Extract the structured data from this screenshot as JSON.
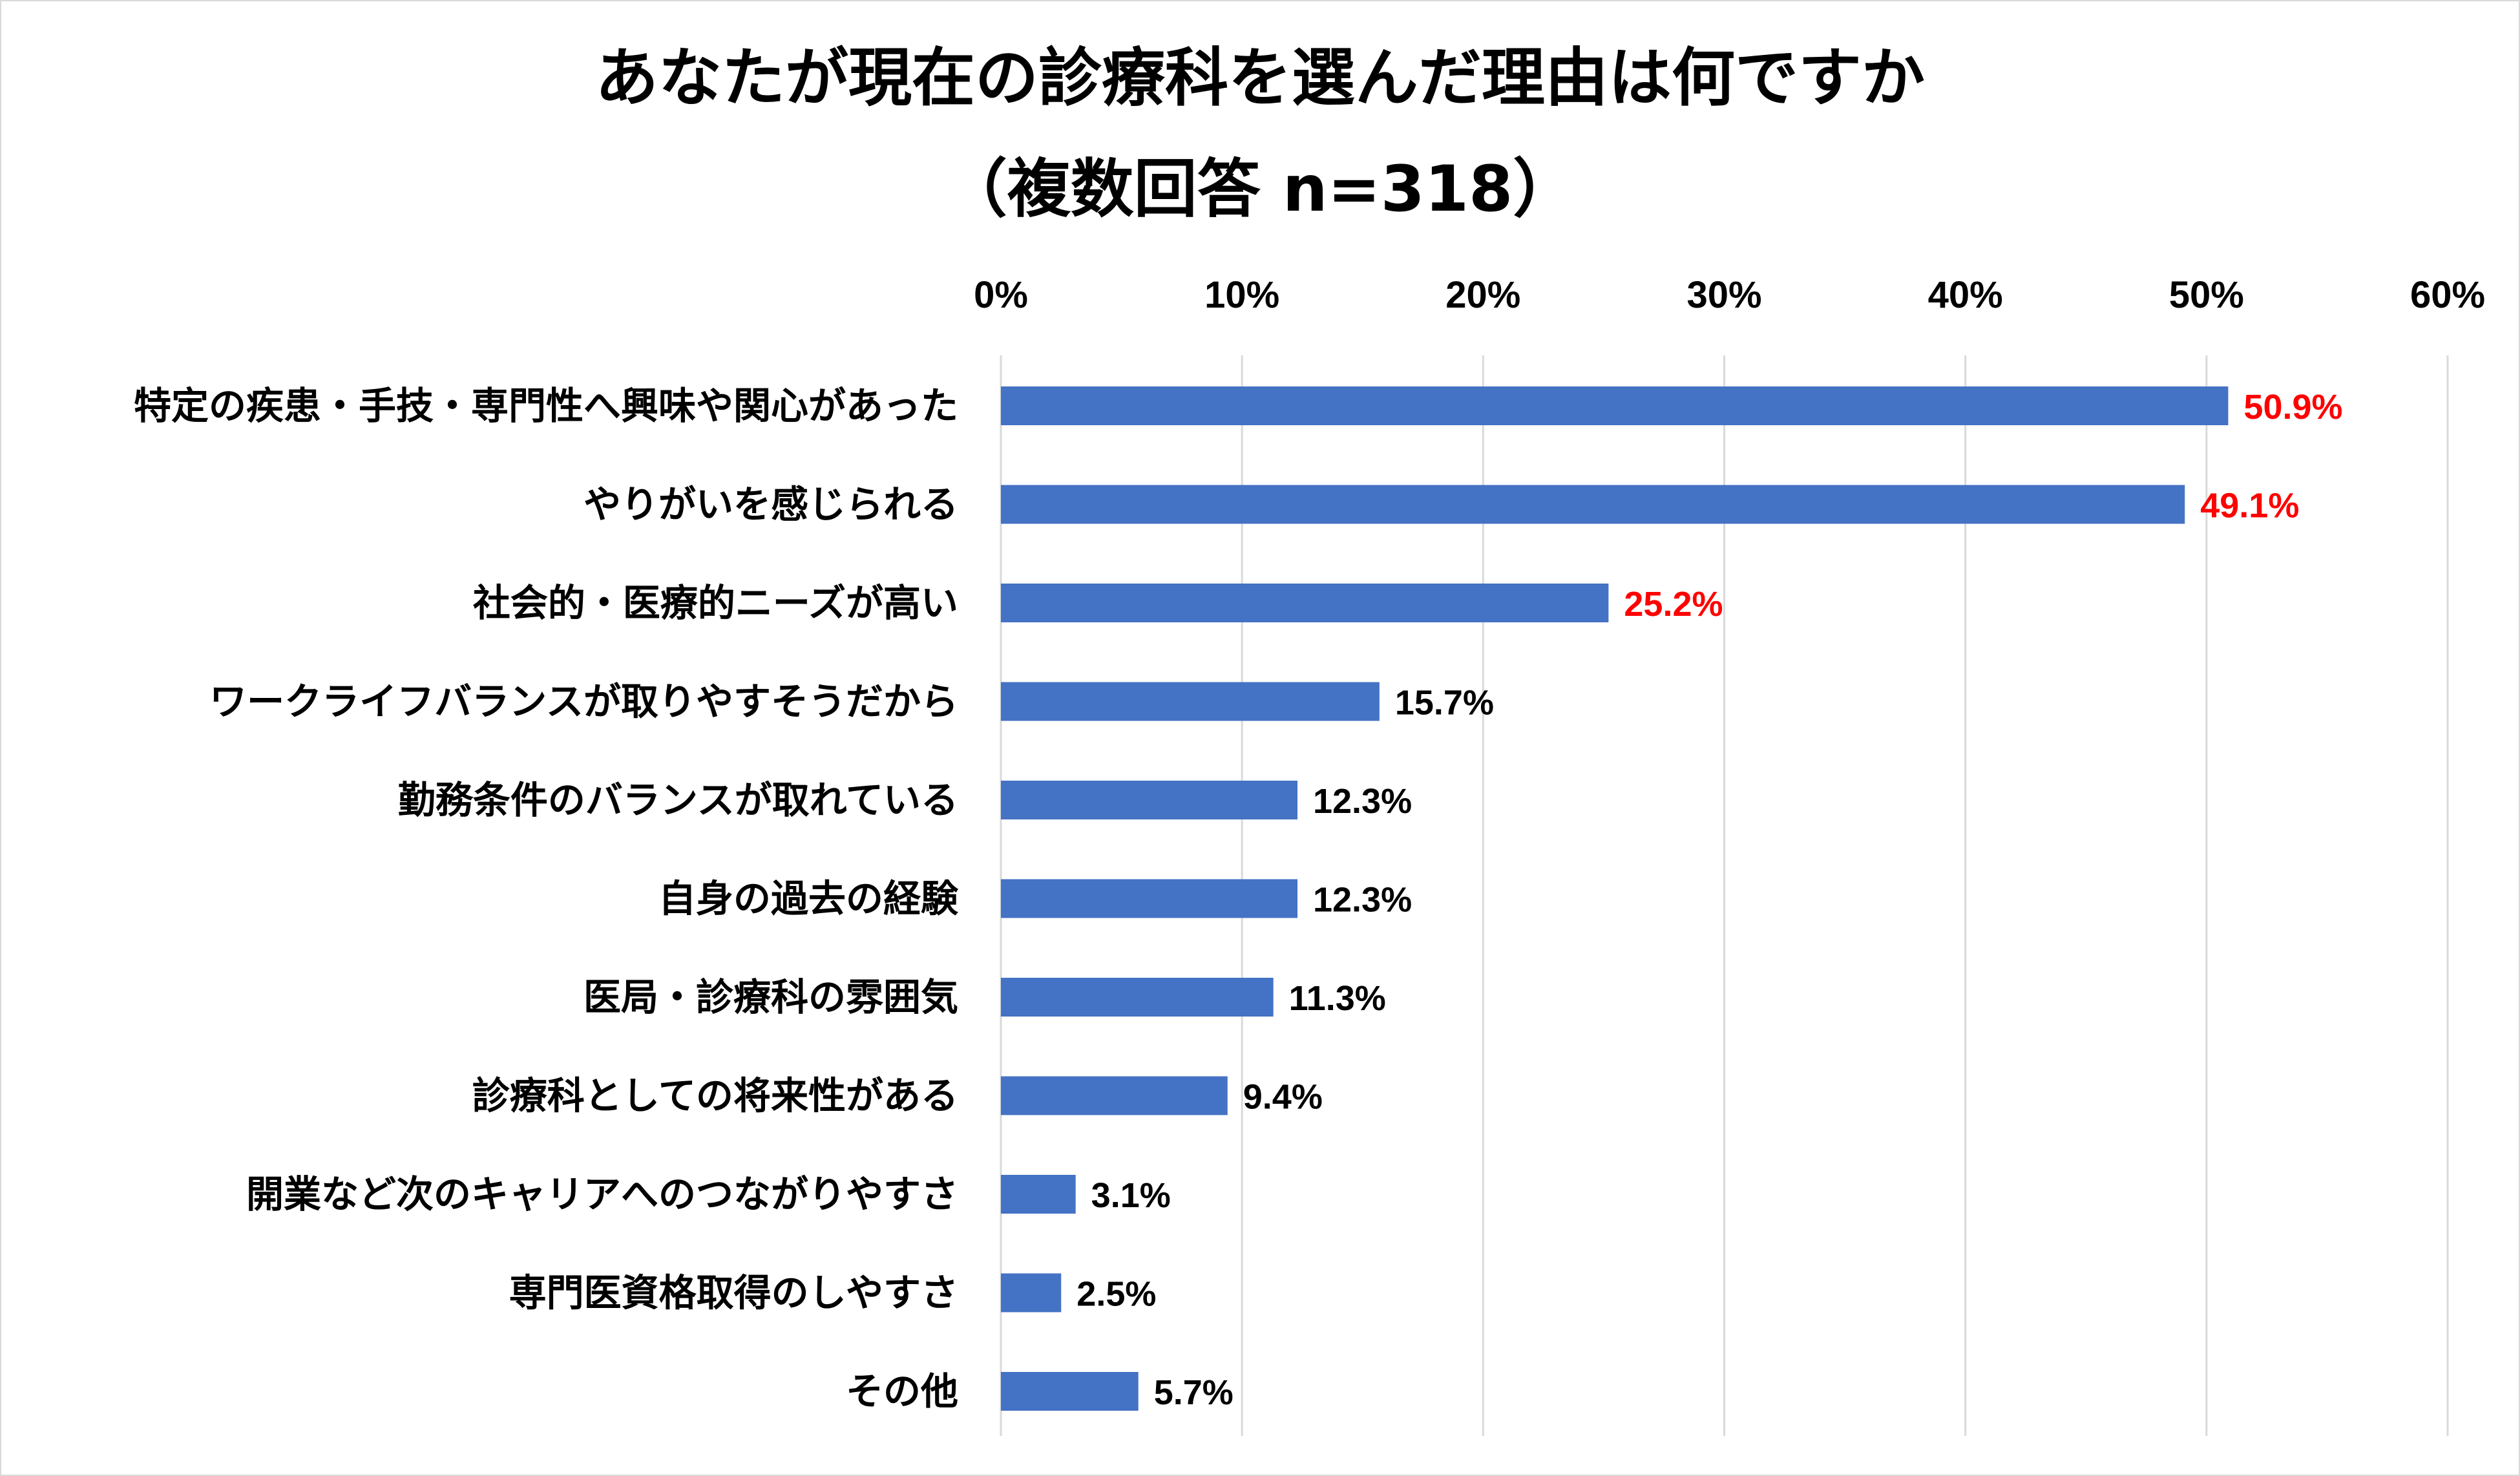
{
  "chart_data": {
    "type": "bar",
    "orientation": "horizontal",
    "title": "あなたが現在の診療科を選んだ理由は何ですか",
    "subtitle": "（複数回答 n=318）",
    "xlim": [
      0,
      60
    ],
    "x_ticks": [
      "0%",
      "10%",
      "20%",
      "30%",
      "40%",
      "50%",
      "60%"
    ],
    "x_tick_values": [
      0,
      10,
      20,
      30,
      40,
      50,
      60
    ],
    "grid": true,
    "axis_position": "top",
    "bar_color": "#4472c4",
    "highlight_label_color": "#ff0000",
    "default_label_color": "#000000",
    "highlight_count": 3,
    "categories": [
      "特定の疾患・手技・専門性へ興味や関心があった",
      "やりがいを感じられる",
      "社会的・医療的ニーズが高い",
      "ワークライフバランスが取りやすそうだから",
      "勤務条件のバランスが取れている",
      "自身の過去の経験",
      "医局・診療科の雰囲気",
      "診療科としての将来性がある",
      "開業など次のキャリアへのつながりやすさ",
      "専門医資格取得のしやすさ",
      "その他"
    ],
    "values": [
      50.9,
      49.1,
      25.2,
      15.7,
      12.3,
      12.3,
      11.3,
      9.4,
      3.1,
      2.5,
      5.7
    ],
    "value_labels": [
      "50.9%",
      "49.1%",
      "25.2%",
      "15.7%",
      "12.3%",
      "12.3%",
      "11.3%",
      "9.4%",
      "3.1%",
      "2.5%",
      "5.7%"
    ]
  }
}
